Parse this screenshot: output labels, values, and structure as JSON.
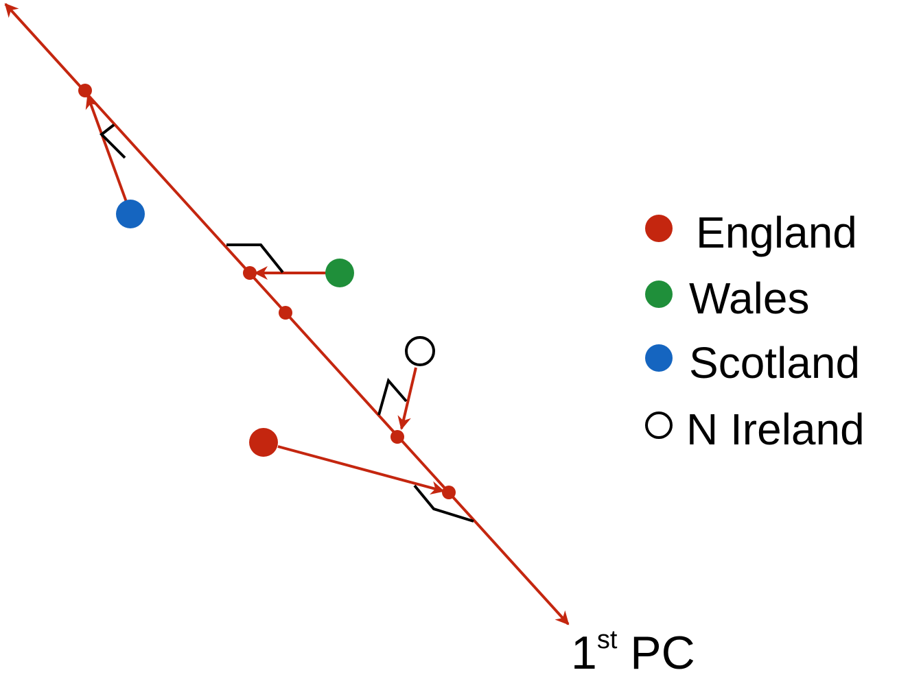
{
  "colors": {
    "axis": "#c4260f",
    "england": "#c4260f",
    "wales": "#1f8f3a",
    "scotland": "#1565c0",
    "n_ireland_fill": "#ffffff",
    "n_ireland_stroke": "#000000",
    "right_angle": "#000000"
  },
  "axis": {
    "label_main": "1",
    "label_sup": "st",
    "label_rest": " PC"
  },
  "legend": {
    "items": [
      {
        "label": "England",
        "marker": "filled-circle",
        "color": "#c4260f"
      },
      {
        "label": "Wales",
        "marker": "filled-circle",
        "color": "#1f8f3a"
      },
      {
        "label": "Scotland",
        "marker": "filled-circle",
        "color": "#1565c0"
      },
      {
        "label": "N Ireland",
        "marker": "open-circle",
        "color": "#000000"
      }
    ]
  },
  "points": [
    {
      "name": "Scotland"
    },
    {
      "name": "Wales"
    },
    {
      "name": "N Ireland"
    },
    {
      "name": "England"
    }
  ]
}
